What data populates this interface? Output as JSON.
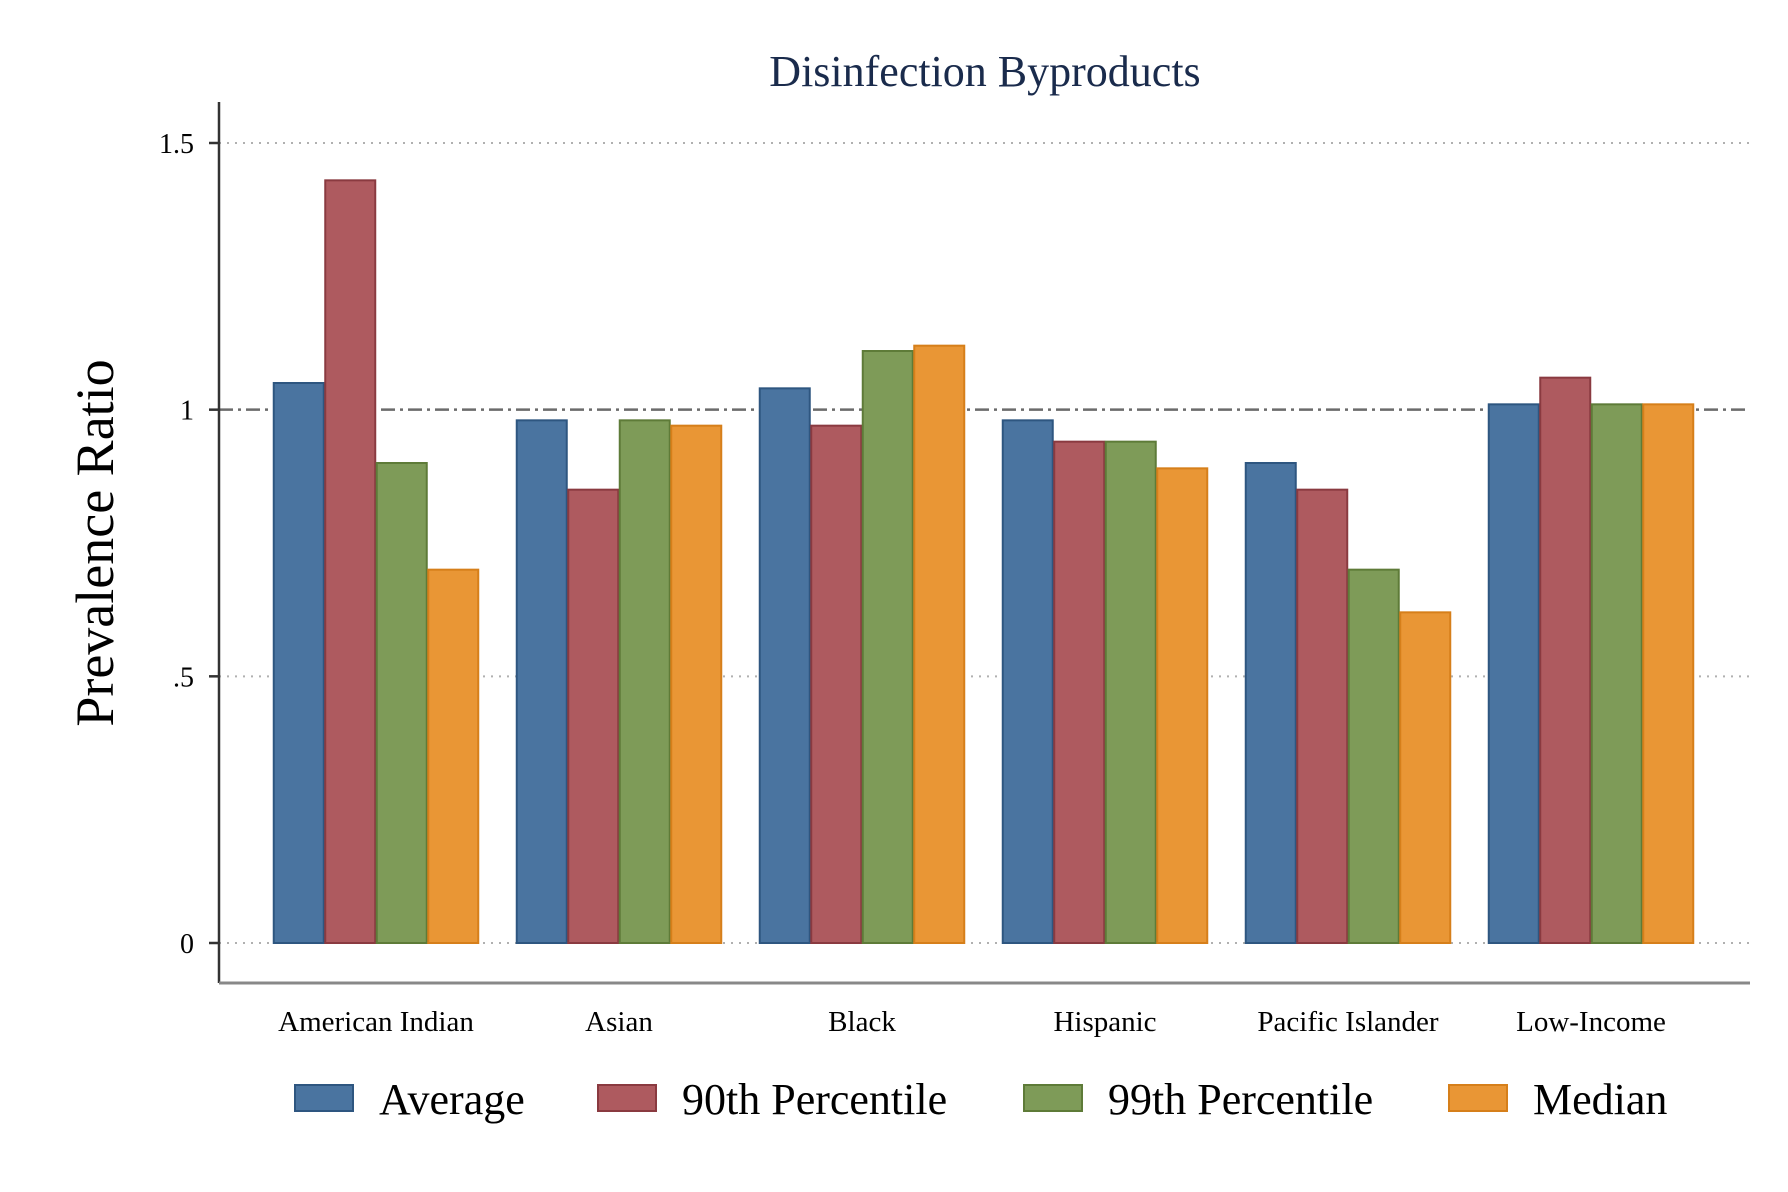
{
  "chart_data": {
    "type": "bar",
    "title": "Disinfection Byproducts",
    "ylabel": "Prevalence Ratio",
    "xlabel": "",
    "ylim": [
      0,
      1.6
    ],
    "yticks": [
      0,
      0.5,
      1,
      1.5
    ],
    "ytick_labels": [
      "0",
      ".5",
      "1",
      "1.5"
    ],
    "reference_line": 1,
    "grid": "dotted horizontal",
    "legend_position": "bottom",
    "categories": [
      "American Indian",
      "Asian",
      "Black",
      "Hispanic",
      "Pacific Islander",
      "Low-Income"
    ],
    "series": [
      {
        "name": "Average",
        "color": "#4a74a0",
        "edge": "#2e5680",
        "values": [
          1.05,
          0.98,
          1.04,
          0.98,
          0.9,
          1.01
        ]
      },
      {
        "name": "90th Percentile",
        "color": "#ae5a5f",
        "edge": "#8a3a40",
        "values": [
          1.43,
          0.85,
          0.97,
          0.94,
          0.85,
          1.06
        ]
      },
      {
        "name": "99th Percentile",
        "color": "#7e9b58",
        "edge": "#5e7b38",
        "values": [
          0.9,
          0.98,
          1.11,
          0.94,
          0.7,
          1.01
        ]
      },
      {
        "name": "Median",
        "color": "#e99635",
        "edge": "#d67f1a",
        "values": [
          0.7,
          0.97,
          1.12,
          0.89,
          0.62,
          1.01
        ]
      }
    ]
  }
}
